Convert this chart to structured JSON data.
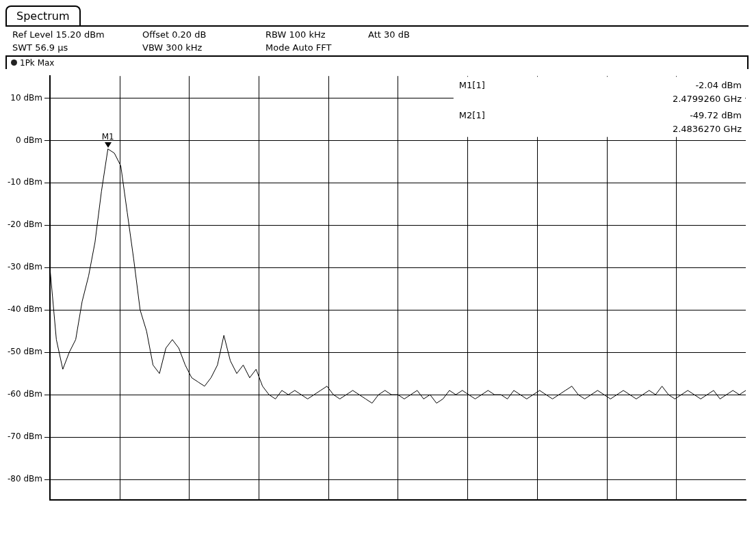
{
  "chart_data": {
    "type": "line",
    "title": "Spectrum",
    "annotations": [
      "Ref Level 15.20 dBm",
      "Offset 0.20 dB",
      "RBW 100 kHz",
      "Att 30 dB",
      "SWT 56.9 µs",
      "VBW 300 kHz",
      "Mode Auto FFT",
      "1Pk Max",
      "M1[1]",
      "-2.04 dBm",
      "2.4799260 GHz",
      "M2[1]",
      "-49.72 dBm",
      "2.4836270 GHz",
      "M1"
    ],
    "categories": [
      null,
      null,
      null,
      null,
      null,
      null,
      null,
      null,
      null,
      null,
      null,
      null,
      null,
      null,
      null,
      null,
      null,
      null,
      null,
      null,
      null,
      null,
      null,
      null,
      null,
      null,
      null,
      null,
      null,
      null,
      null,
      null,
      null,
      null,
      null,
      null,
      null,
      null,
      null,
      null,
      null,
      null,
      null,
      null,
      null,
      null,
      null,
      null,
      null,
      null,
      null,
      null,
      null,
      null,
      null,
      null,
      null,
      null,
      null,
      null,
      null,
      null,
      null,
      null,
      null,
      null,
      null,
      null,
      null,
      null,
      null,
      null,
      null,
      null,
      null,
      null,
      null,
      null,
      null,
      null,
      null,
      null,
      null,
      null,
      null,
      null,
      null,
      null,
      null,
      null,
      null,
      null,
      null,
      null,
      null,
      null,
      null,
      null,
      null,
      null,
      null,
      null,
      null,
      null,
      null,
      null,
      null,
      null,
      null
    ],
    "series": [
      {
        "color": "#000000",
        "values": [
          -30,
          -47,
          -54,
          -50,
          -47,
          -38,
          -32,
          -24,
          -12,
          -2,
          -3,
          -6,
          -17,
          -28,
          -40,
          -45,
          -53,
          -55,
          -49,
          -47,
          -49,
          -53,
          -56,
          -57,
          -58,
          -56,
          -53,
          -46,
          -52,
          -55,
          -53,
          -56,
          -54,
          -58,
          -60,
          -61,
          -59,
          -60,
          -59,
          -60,
          -61,
          -60,
          -59,
          -58,
          -60,
          -61,
          -60,
          -59,
          -60,
          -61,
          -62,
          -60,
          -59,
          -60,
          -60,
          -61,
          -60,
          -59,
          -61,
          -60,
          -62,
          -61,
          -59,
          -60,
          -59,
          -60,
          -61,
          -60,
          -59,
          -60,
          -60,
          -61,
          -59,
          -60,
          -61,
          -60,
          -59,
          -60,
          -61,
          -60,
          -59,
          -58,
          -60,
          -61,
          -60,
          -59,
          -60,
          -61,
          -60,
          -59,
          -60,
          -61,
          -60,
          -59,
          -60,
          -58,
          -60,
          -61,
          -60,
          -59,
          -60,
          -61,
          -60,
          -59,
          -61,
          -60,
          -59,
          -60,
          -59
        ]
      }
    ],
    "ylim": [
      -84.8,
      15.2
    ],
    "yticks": [
      {
        "value": 10,
        "label": "10 dBm"
      },
      {
        "value": 0,
        "label": "0 dBm"
      },
      {
        "value": -10,
        "label": "-10 dBm"
      },
      {
        "value": -20,
        "label": "-20 dBm"
      },
      {
        "value": -30,
        "label": "-30 dBm"
      },
      {
        "value": -40,
        "label": "-40 dBm"
      },
      {
        "value": -50,
        "label": "-50 dBm"
      },
      {
        "value": -60,
        "label": "-60 dBm"
      },
      {
        "value": -70,
        "label": "-70 dBm"
      },
      {
        "value": -80,
        "label": "-80 dBm"
      }
    ],
    "tick_labels": "y",
    "grid": true,
    "legend": false,
    "marker": "none",
    "line_style": "solid"
  }
}
